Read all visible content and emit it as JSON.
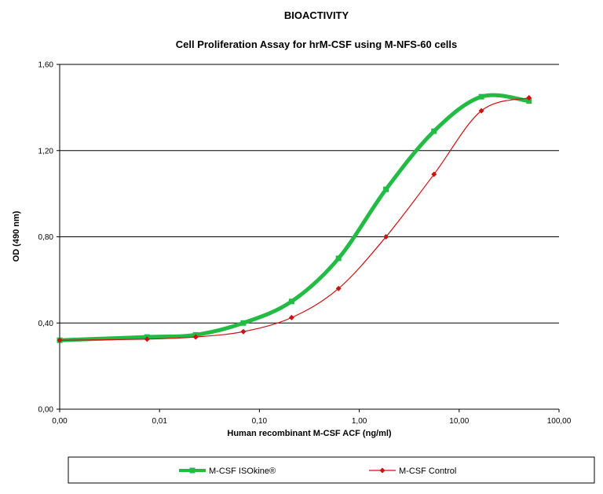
{
  "chart_data": {
    "type": "line",
    "header": "BIOACTIVITY",
    "title": "Cell Proliferation Assay for hrM-CSF using M-NFS-60 cells",
    "xlabel": "Human recombinant M-CSF ACF (ng/ml)",
    "ylabel": "OD (490 nm)",
    "x_scale": "log",
    "x_tick_labels": [
      "0,00",
      "0,01",
      "0,10",
      "1,00",
      "10,00",
      "100,00"
    ],
    "x_tick_values": [
      0.001,
      0.01,
      0.1,
      1,
      10,
      100
    ],
    "y_tick_labels": [
      "0,00",
      "0,40",
      "0,80",
      "1,20",
      "1,60"
    ],
    "ylim": [
      0,
      1.6
    ],
    "grid": "horizontal",
    "legend_position": "bottom",
    "series": [
      {
        "name": "M-CSF ISOkine®",
        "color": "#22bb44",
        "marker": "square",
        "x": [
          0.001,
          0.0075,
          0.023,
          0.069,
          0.21,
          0.62,
          1.85,
          5.6,
          16.7,
          50
        ],
        "y": [
          0.32,
          0.335,
          0.345,
          0.4,
          0.5,
          0.7,
          1.02,
          1.29,
          1.45,
          1.43
        ]
      },
      {
        "name": "M-CSF Control",
        "color": "#cc1111",
        "marker": "diamond",
        "x": [
          0.001,
          0.0075,
          0.023,
          0.069,
          0.21,
          0.62,
          1.85,
          5.6,
          16.7,
          50
        ],
        "y": [
          0.32,
          0.325,
          0.335,
          0.36,
          0.425,
          0.56,
          0.8,
          1.09,
          1.385,
          1.445
        ]
      }
    ]
  }
}
